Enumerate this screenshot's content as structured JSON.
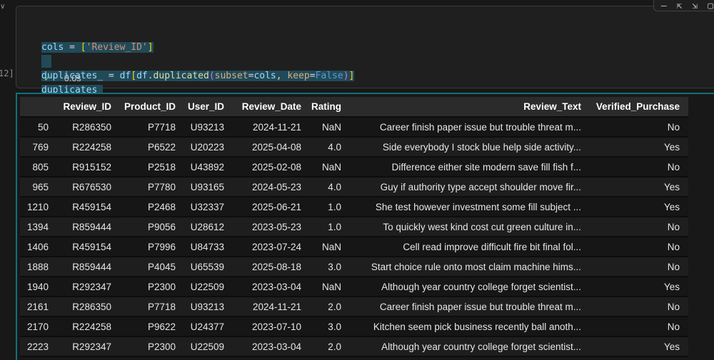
{
  "cell": {
    "collapse_chevron": "∨",
    "execution_count_label": "12]",
    "status_check": "✓",
    "exec_time": "0.0s",
    "toolbar": [
      {
        "name": "collapse-cell-icon",
        "glyph": "—"
      },
      {
        "name": "execute-above-icon",
        "glyph": "⇱"
      },
      {
        "name": "execute-below-icon",
        "glyph": "⇲"
      },
      {
        "name": "more-actions-icon",
        "glyph": "▢"
      }
    ],
    "code_lines": [
      {
        "selected": true,
        "tokens": [
          {
            "t": "var",
            "s": "cols"
          },
          {
            "t": "op",
            "s": " = "
          },
          {
            "t": "b1",
            "s": "["
          },
          {
            "t": "str",
            "s": "'Review_ID'"
          },
          {
            "t": "b1",
            "s": "]"
          }
        ]
      },
      {
        "selected": true,
        "tokens": []
      },
      {
        "selected": true,
        "tokens": [
          {
            "t": "var",
            "s": "duplicates_"
          },
          {
            "t": "op",
            "s": " = "
          },
          {
            "t": "var",
            "s": "df"
          },
          {
            "t": "b1",
            "s": "["
          },
          {
            "t": "var",
            "s": "df"
          },
          {
            "t": "op",
            "s": "."
          },
          {
            "t": "fn",
            "s": "duplicated"
          },
          {
            "t": "b2",
            "s": "("
          },
          {
            "t": "param",
            "s": "subset"
          },
          {
            "t": "op",
            "s": "="
          },
          {
            "t": "var",
            "s": "cols"
          },
          {
            "t": "op",
            "s": ", "
          },
          {
            "t": "param",
            "s": "keep"
          },
          {
            "t": "op",
            "s": "="
          },
          {
            "t": "kw",
            "s": "False"
          },
          {
            "t": "b2",
            "s": ")"
          },
          {
            "t": "b1",
            "s": "]"
          }
        ]
      },
      {
        "selected": true,
        "tokens": [
          {
            "t": "var",
            "s": "duplicates_"
          }
        ]
      }
    ]
  },
  "table": {
    "columns": [
      "",
      "Review_ID",
      "Product_ID",
      "User_ID",
      "Review_Date",
      "Rating",
      "Review_Text",
      "Verified_Purchase"
    ],
    "rows": [
      [
        "50",
        "R286350",
        "P7718",
        "U93213",
        "2024-11-21",
        "NaN",
        "Career finish paper issue but trouble threat m...",
        "No"
      ],
      [
        "769",
        "R224258",
        "P6522",
        "U20223",
        "2025-04-08",
        "4.0",
        "Side everybody I stock blue help side activity...",
        "Yes"
      ],
      [
        "805",
        "R915152",
        "P2518",
        "U43892",
        "2025-02-08",
        "NaN",
        "Difference either site modern save fill fish f...",
        "No"
      ],
      [
        "965",
        "R676530",
        "P7780",
        "U93165",
        "2024-05-23",
        "4.0",
        "Guy if authority type accept shoulder move fir...",
        "Yes"
      ],
      [
        "1210",
        "R459154",
        "P2468",
        "U32337",
        "2025-06-21",
        "1.0",
        "She test however investment some fill subject ...",
        "Yes"
      ],
      [
        "1394",
        "R859444",
        "P9056",
        "U28612",
        "2023-05-23",
        "1.0",
        "To quickly west kind cost cut green culture in...",
        "No"
      ],
      [
        "1406",
        "R459154",
        "P7996",
        "U84733",
        "2023-07-24",
        "NaN",
        "Cell read improve difficult fire bit final fol...",
        "No"
      ],
      [
        "1888",
        "R859444",
        "P4045",
        "U65539",
        "2025-08-18",
        "3.0",
        "Start choice rule onto most claim machine hims...",
        "No"
      ],
      [
        "1940",
        "R292347",
        "P2300",
        "U22509",
        "2023-03-04",
        "NaN",
        "Although year country college forget scientist...",
        "Yes"
      ],
      [
        "2161",
        "R286350",
        "P7718",
        "U93213",
        "2024-11-21",
        "2.0",
        "Career finish paper issue but trouble threat m...",
        "No"
      ],
      [
        "2170",
        "R224258",
        "P9622",
        "U24377",
        "2023-07-10",
        "3.0",
        "Kitchen seem pick business recently ball anoth...",
        "No"
      ],
      [
        "2223",
        "R292347",
        "P2300",
        "U22509",
        "2023-03-04",
        "2.0",
        "Although year country college forget scientist...",
        "Yes"
      ]
    ]
  },
  "colors": {
    "accent_teal": "#11707e",
    "selection": "#214a59",
    "check_green": "#73c991",
    "header_bg": "#2b2b2b",
    "cell_bg": "#1f1f1f"
  }
}
